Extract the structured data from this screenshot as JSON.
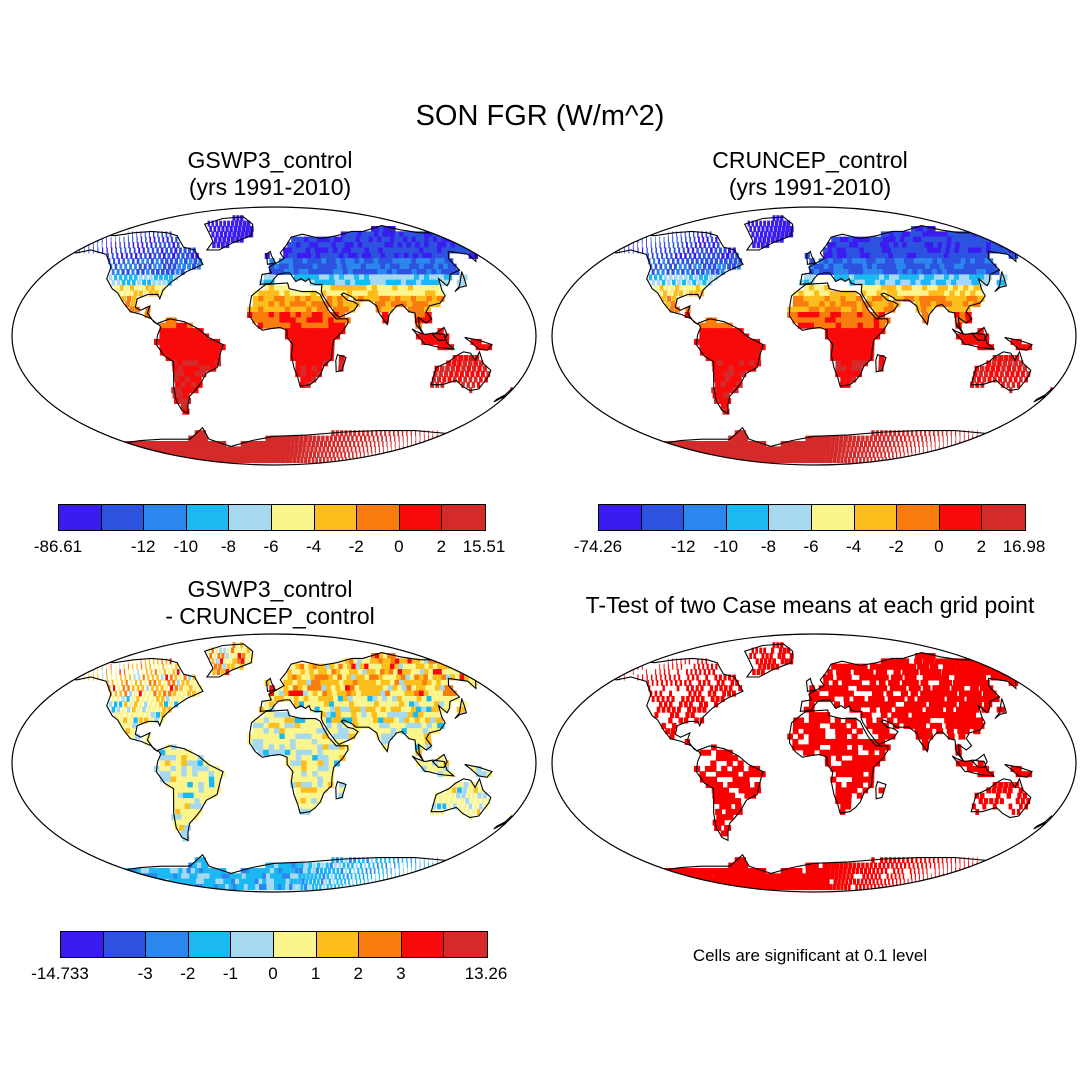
{
  "figure": {
    "title": "SON FGR (W/m^2)",
    "note": "Cells are significant at 0.1 level"
  },
  "palette": [
    "#3a1cf0",
    "#2d52e0",
    "#2b86ee",
    "#1bb9f2",
    "#a6d8f0",
    "#fbf58e",
    "#fbbe1c",
    "#f97d0e",
    "#f80a0a",
    "#d42a2a"
  ],
  "panels": [
    {
      "id": "gswp3",
      "title_line1": "GSWP3_control",
      "title_line2": "(yrs 1991-2010)",
      "colorbar_labels": [
        "-86.61",
        "-12",
        "-10",
        "-8",
        "-6",
        "-4",
        "-2",
        "0",
        "2",
        "15.51"
      ]
    },
    {
      "id": "cruncep",
      "title_line1": "CRUNCEP_control",
      "title_line2": "(yrs 1991-2010)",
      "colorbar_labels": [
        "-74.26",
        "-12",
        "-10",
        "-8",
        "-6",
        "-4",
        "-2",
        "0",
        "2",
        "16.98"
      ]
    },
    {
      "id": "diff",
      "title_line1": "GSWP3_control",
      "title_line2": "- CRUNCEP_control",
      "colorbar_labels": [
        "-14.733",
        "-3",
        "-2",
        "-1",
        "0",
        "1",
        "2",
        "3",
        "13.26"
      ]
    },
    {
      "id": "ttest",
      "title_line1": "T-Test of two Case means at each grid point",
      "significance_color": "#f80000"
    }
  ]
}
